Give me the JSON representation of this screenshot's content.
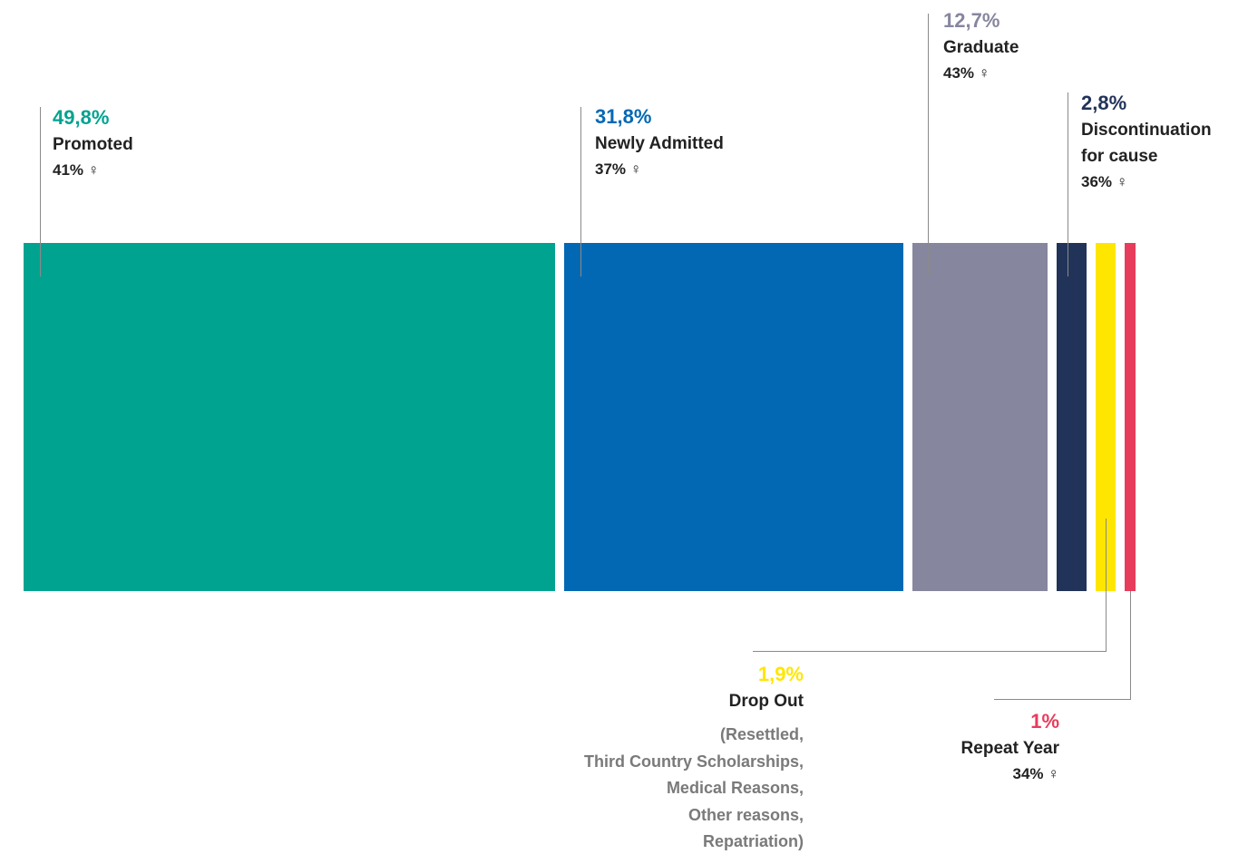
{
  "chart_data": {
    "type": "bar",
    "orientation": "stacked-horizontal-100",
    "title": "",
    "female_symbol": "♀",
    "categories": [
      {
        "name": "Promoted",
        "percent_label": "49,8%",
        "value": 49.8,
        "female_share": "41%",
        "color": "#00a390"
      },
      {
        "name": "Newly Admitted",
        "percent_label": "31,8%",
        "value": 31.8,
        "female_share": "37%",
        "color": "#0368b4"
      },
      {
        "name": "Graduate",
        "percent_label": "12,7%",
        "value": 12.7,
        "female_share": "43%",
        "color": "#86869f"
      },
      {
        "name_lines": [
          "Discontinuation",
          "for cause"
        ],
        "percent_label": "2,8%",
        "value": 2.8,
        "female_share": "36%",
        "color": "#213359"
      },
      {
        "name": "Drop Out",
        "percent_label": "1,9%",
        "value": 1.9,
        "color": "#ffe600",
        "note_lines": [
          "(Resettled,",
          "Third Country Scholarships,",
          "Medical Reasons,",
          "Other reasons,",
          "Repatriation)"
        ]
      },
      {
        "name": "Repeat Year",
        "percent_label": "1%",
        "value": 1.0,
        "female_share": "34%",
        "color": "#e83c5c"
      }
    ]
  }
}
